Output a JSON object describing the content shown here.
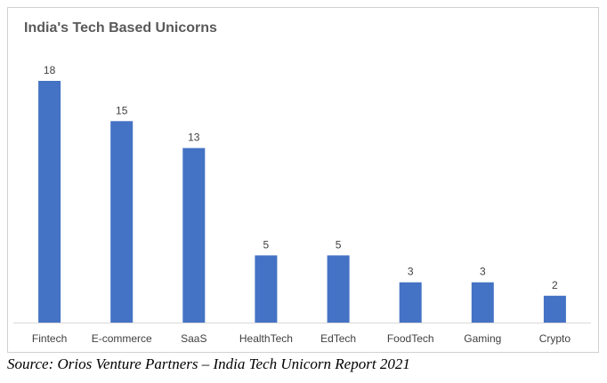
{
  "chart_data": {
    "type": "bar",
    "title": "India's Tech Based Unicorns",
    "categories": [
      "Fintech",
      "E-commerce",
      "SaaS",
      "HealthTech",
      "EdTech",
      "FoodTech",
      "Gaming",
      "Crypto"
    ],
    "values": [
      18,
      15,
      13,
      5,
      5,
      3,
      3,
      2
    ],
    "data_labels": [
      "18",
      "15",
      "13",
      "5",
      "5",
      "3",
      "3",
      "2"
    ],
    "xlabel": "",
    "ylabel": "",
    "ylim": [
      0,
      18
    ],
    "grid": false,
    "legend": "none",
    "bar_color": "#4472c4"
  },
  "source": "Source: Orios Venture Partners – India Tech Unicorn Report 2021"
}
